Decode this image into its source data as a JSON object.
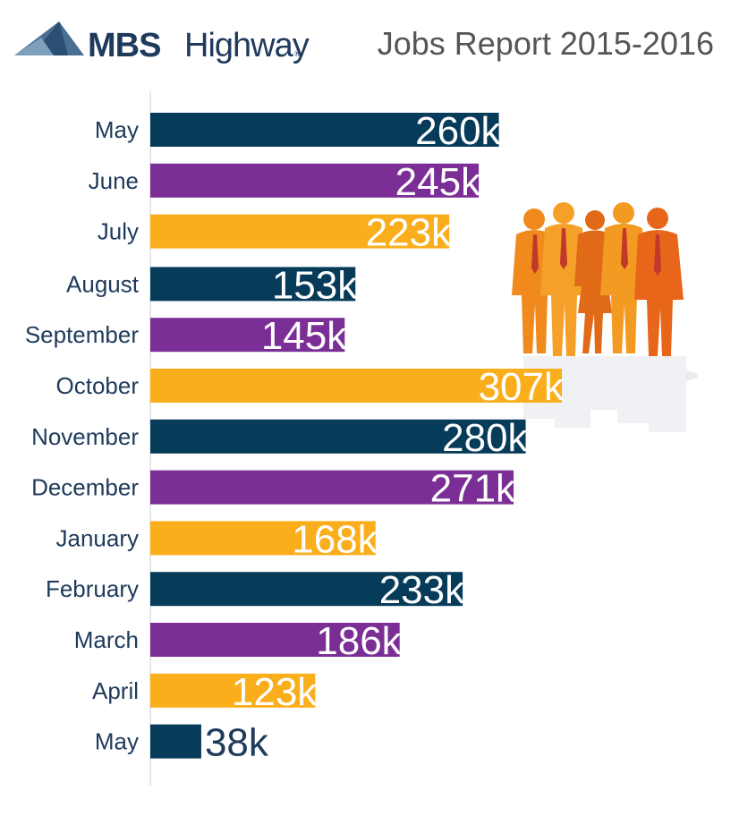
{
  "header": {
    "brand_bold": "MBS",
    "brand_light": "Highway",
    "brand_mark": "®",
    "title": "Jobs Report 2015-2016"
  },
  "colors": {
    "navy": "#073b5a",
    "purple": "#7b2e96",
    "gold": "#fbae1c",
    "label": "#1e3a5c"
  },
  "chart_data": {
    "type": "bar",
    "orientation": "horizontal",
    "title": "Jobs Report 2015-2016",
    "xlabel": "",
    "ylabel": "",
    "unit_suffix": "k",
    "xlim": [
      0,
      307
    ],
    "grid": false,
    "legend": "none",
    "categories": [
      "May",
      "June",
      "July",
      "August",
      "September",
      "October",
      "November",
      "December",
      "January",
      "February",
      "March",
      "April",
      "May"
    ],
    "values": [
      260,
      245,
      223,
      153,
      145,
      307,
      280,
      271,
      168,
      233,
      186,
      123,
      38
    ],
    "value_labels": [
      "260k",
      "245k",
      "223k",
      "153k",
      "145k",
      "307k",
      "280k",
      "271k",
      "168k",
      "233k",
      "186k",
      "123k",
      "38k"
    ],
    "bar_colors": [
      "#073b5a",
      "#7b2e96",
      "#fbae1c",
      "#073b5a",
      "#7b2e96",
      "#fbae1c",
      "#073b5a",
      "#7b2e96",
      "#fbae1c",
      "#073b5a",
      "#7b2e96",
      "#fbae1c",
      "#073b5a"
    ]
  },
  "decoration": {
    "logo_icon": "mountain-logo-icon",
    "illustration": "business-people-group-icon"
  }
}
